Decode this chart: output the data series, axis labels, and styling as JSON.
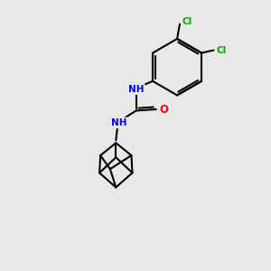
{
  "background_color": "#e8e8e8",
  "atom_colors": {
    "N": "#0000ee",
    "O": "#ff0000",
    "Cl": "#00aa00",
    "C": "#000000",
    "H": "#008080"
  },
  "bond_color": "#000000",
  "bond_lw": 1.5,
  "figsize": [
    3.0,
    3.0
  ],
  "dpi": 100,
  "xlim": [
    0,
    10
  ],
  "ylim": [
    0,
    10
  ]
}
